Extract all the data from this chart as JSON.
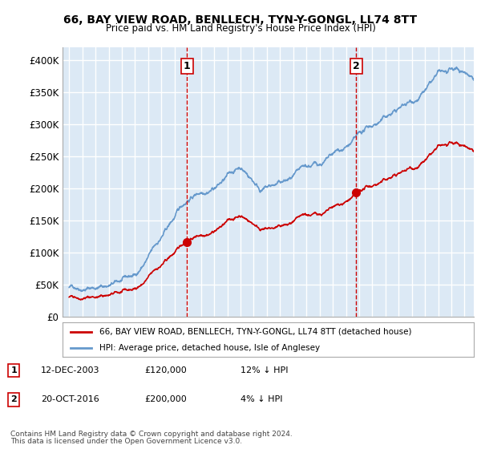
{
  "title": "66, BAY VIEW ROAD, BENLLECH, TYN-Y-GONGL, LL74 8TT",
  "subtitle": "Price paid vs. HM Land Registry's House Price Index (HPI)",
  "ylim": [
    0,
    420000
  ],
  "yticks": [
    0,
    50000,
    100000,
    150000,
    200000,
    250000,
    300000,
    350000,
    400000
  ],
  "ytick_labels": [
    "£0",
    "£50K",
    "£100K",
    "£150K",
    "£200K",
    "£250K",
    "£300K",
    "£350K",
    "£400K"
  ],
  "background_color": "#ffffff",
  "plot_bg_color": "#dce9f5",
  "grid_color": "#ffffff",
  "sale1_date": "12-DEC-2003",
  "sale1_price": 120000,
  "sale1_price_str": "£120,000",
  "sale1_hpi_diff": "12% ↓ HPI",
  "sale2_date": "20-OCT-2016",
  "sale2_price": 200000,
  "sale2_price_str": "£200,000",
  "sale2_hpi_diff": "4% ↓ HPI",
  "legend_label_red": "66, BAY VIEW ROAD, BENLLECH, TYN-Y-GONGL, LL74 8TT (detached house)",
  "legend_label_blue": "HPI: Average price, detached house, Isle of Anglesey",
  "footer_line1": "Contains HM Land Registry data © Crown copyright and database right 2024.",
  "footer_line2": "This data is licensed under the Open Government Licence v3.0.",
  "red_color": "#cc0000",
  "blue_color": "#6699cc",
  "vline_color": "#cc0000",
  "sale1_year": 2003.95,
  "sale2_year": 2016.79
}
